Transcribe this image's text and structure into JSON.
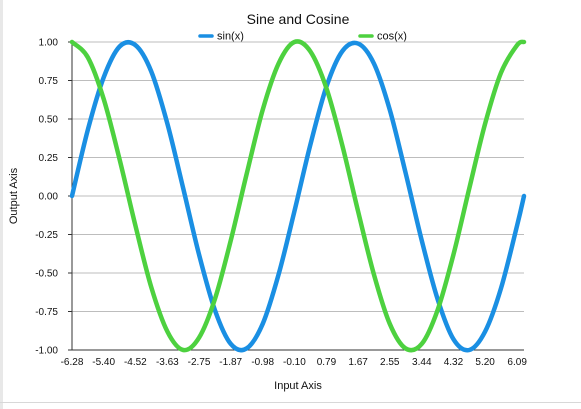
{
  "chart_data": {
    "type": "line",
    "title": "Sine and Cosine",
    "xlabel": "Input Axis",
    "ylabel": "Output Axis",
    "xlim": [
      -6.28,
      6.28
    ],
    "ylim": [
      -1.0,
      1.0
    ],
    "grid": true,
    "legend_position": "top",
    "x_tick_labels": [
      "-6.28",
      "-5.40",
      "-4.52",
      "-3.63",
      "-2.75",
      "-1.87",
      "-0.98",
      "-0.10",
      "0.79",
      "1.67",
      "2.55",
      "3.44",
      "4.32",
      "5.20",
      "6.09"
    ],
    "y_tick_labels": [
      "1.00",
      "0.75",
      "0.50",
      "0.25",
      "0.00",
      "-0.25",
      "-0.50",
      "-0.75",
      "-1.00"
    ],
    "y_tick_values": [
      1.0,
      0.75,
      0.5,
      0.25,
      0.0,
      -0.25,
      -0.5,
      -0.75,
      -1.0
    ],
    "series": [
      {
        "name": "sin(x)",
        "color": "#1a8fe3",
        "x": [
          -6.28,
          -5.84,
          -5.4,
          -4.96,
          -4.52,
          -4.08,
          -3.63,
          -3.19,
          -2.75,
          -2.31,
          -1.87,
          -1.43,
          -0.98,
          -0.54,
          -0.1,
          0.34,
          0.79,
          1.23,
          1.67,
          2.11,
          2.55,
          2.99,
          3.44,
          3.88,
          4.32,
          4.76,
          5.2,
          5.64,
          6.09,
          6.28
        ],
        "y": [
          0.0,
          0.43,
          0.77,
          0.97,
          0.98,
          0.81,
          0.47,
          0.05,
          -0.38,
          -0.74,
          -0.96,
          -0.99,
          -0.83,
          -0.51,
          -0.1,
          0.33,
          0.71,
          0.94,
          0.99,
          0.86,
          0.56,
          0.15,
          -0.29,
          -0.67,
          -0.93,
          -1.0,
          -0.88,
          -0.6,
          -0.19,
          0.0
        ]
      },
      {
        "name": "cos(x)",
        "color": "#4dd13f",
        "x": [
          -6.28,
          -5.84,
          -5.4,
          -4.96,
          -4.52,
          -4.08,
          -3.63,
          -3.19,
          -2.75,
          -2.31,
          -1.87,
          -1.43,
          -0.98,
          -0.54,
          -0.1,
          0.34,
          0.79,
          1.23,
          1.67,
          2.11,
          2.55,
          2.99,
          3.44,
          3.88,
          4.32,
          4.76,
          5.2,
          5.64,
          6.09,
          6.28
        ],
        "y": [
          1.0,
          0.9,
          0.63,
          0.24,
          -0.19,
          -0.59,
          -0.88,
          -1.0,
          -0.92,
          -0.67,
          -0.29,
          0.14,
          0.56,
          0.86,
          1.0,
          0.94,
          0.7,
          0.33,
          -0.1,
          -0.51,
          -0.83,
          -0.99,
          -0.96,
          -0.74,
          -0.38,
          0.05,
          0.47,
          0.8,
          0.98,
          1.0
        ]
      }
    ]
  }
}
